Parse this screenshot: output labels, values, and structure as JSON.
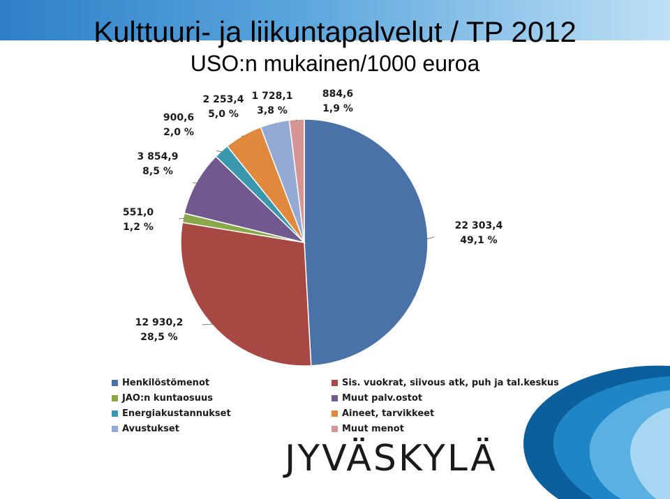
{
  "slide": {
    "title": "Kulttuuri- ja liikuntapalvelut / TP 2012",
    "subtitle": "USO:n mukainen/1000 euroa",
    "logo_text": "JYVÄSKYLÄ"
  },
  "colors": {
    "band": "#2e7fc7",
    "wave_dark": "#0b5f9c",
    "wave_light": "#7fc3ea"
  },
  "chart_data": {
    "type": "pie",
    "title": "",
    "series": [
      {
        "name": "Henkilöstömenot",
        "value": 22303.4,
        "value_label": "22 303,4",
        "percent_label": "49,1 %",
        "color": "#4a72a6"
      },
      {
        "name": "Sis. vuokrat, siivous atk, puh ja tal.keskus",
        "value": 12930.2,
        "value_label": "12 930,2",
        "percent_label": "28,5 %",
        "color": "#a84843"
      },
      {
        "name": "JAO:n kuntaosuus",
        "value": 551.0,
        "value_label": "551,0",
        "percent_label": "1,2 %",
        "color": "#8aa84a"
      },
      {
        "name": "Muut palv.ostot",
        "value": 3854.9,
        "value_label": "3 854,9",
        "percent_label": "8,5 %",
        "color": "#71588f"
      },
      {
        "name": "Energiakustannukset",
        "value": 900.6,
        "value_label": "900,6",
        "percent_label": "2,0 %",
        "color": "#3a98ae"
      },
      {
        "name": "Aineet, tarvikkeet",
        "value": 2253.4,
        "value_label": "2 253,4",
        "percent_label": "5,0 %",
        "color": "#e0883c"
      },
      {
        "name": "Avustukset",
        "value": 1728.1,
        "value_label": "1 728,1",
        "percent_label": "3,8 %",
        "color": "#94a9d3"
      },
      {
        "name": "Muut menot",
        "value": 884.6,
        "value_label": "884,6",
        "percent_label": "1,9 %",
        "color": "#d59594"
      }
    ],
    "legend": {
      "placement": "bottom",
      "order": [
        "Henkilöstömenot",
        "Sis. vuokrat, siivous atk, puh ja tal.keskus",
        "JAO:n kuntaosuus",
        "Muut palv.ostot",
        "Energiakustannukset",
        "Aineet, tarvikkeet",
        "Avustukset",
        "Muut menot"
      ]
    }
  }
}
